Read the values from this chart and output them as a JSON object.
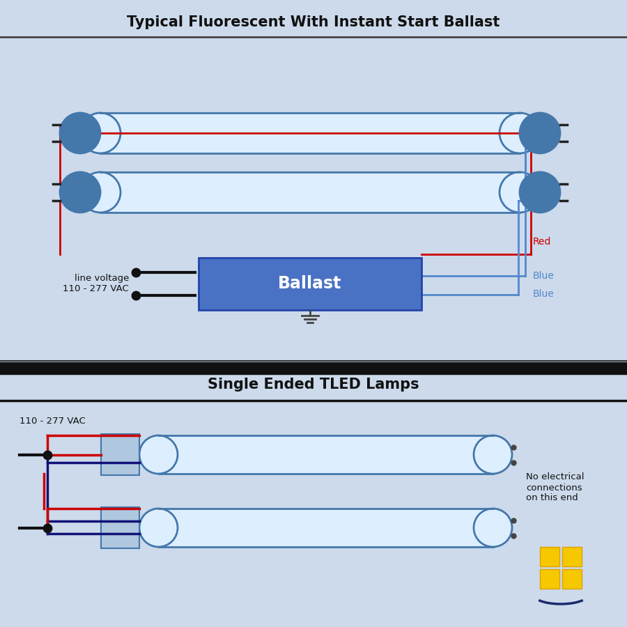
{
  "bg_color": "#ccd9e8",
  "bg_section": "#d0dff0",
  "title1": "Typical Fluorescent With Instant Start Ballast",
  "title2": "Single Ended TLED Lamps",
  "title_color": "#111111",
  "title_fontsize": 15,
  "ballast_color": "#4a72c4",
  "ballast_text": "Ballast",
  "ballast_text_color": "#ffffff",
  "tube_fill": "#ddeeff",
  "tube_border": "#4477aa",
  "wire_red": "#cc0000",
  "wire_blue_dark": "#111177",
  "wire_blue_light": "#5588cc",
  "black_color": "#111111",
  "label_voltage1": "line voltage\n110 - 277 VAC",
  "label_voltage2": "110 - 277 VAC",
  "label_red": "Red",
  "label_blue1": "Blue",
  "label_blue2": "Blue",
  "label_no_elec": "No electrical\nconnections\non this end",
  "sep_dark": "#111111",
  "sep_light": "#333333"
}
